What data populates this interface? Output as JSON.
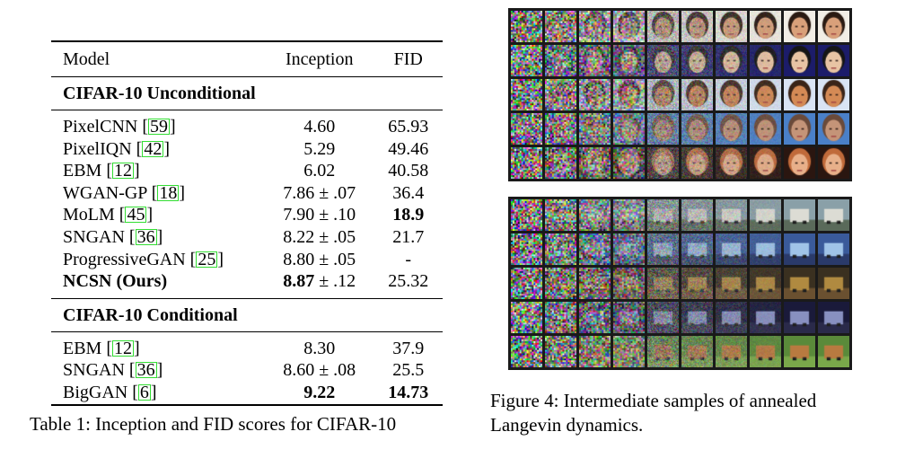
{
  "table": {
    "headers": {
      "model": "Model",
      "inception": "Inception",
      "fid": "FID"
    },
    "sections": [
      {
        "title": "CIFAR-10 Unconditional",
        "rows": [
          {
            "model": "PixelCNN",
            "ref": "59",
            "inception": "4.60",
            "fid": "65.93",
            "inception_bold": false,
            "fid_bold": false,
            "model_bold": false
          },
          {
            "model": "PixelIQN",
            "ref": "42",
            "inception": "5.29",
            "fid": "49.46",
            "inception_bold": false,
            "fid_bold": false,
            "model_bold": false
          },
          {
            "model": "EBM",
            "ref": "12",
            "inception": "6.02",
            "fid": "40.58",
            "inception_bold": false,
            "fid_bold": false,
            "model_bold": false
          },
          {
            "model": "WGAN-GP",
            "ref": "18",
            "inception": "7.86 ± .07",
            "fid": "36.4",
            "inception_bold": false,
            "fid_bold": false,
            "model_bold": false
          },
          {
            "model": "MoLM",
            "ref": "45",
            "inception": "7.90 ± .10",
            "fid": "18.9",
            "inception_bold": false,
            "fid_bold": true,
            "model_bold": false
          },
          {
            "model": "SNGAN",
            "ref": "36",
            "inception": "8.22 ± .05",
            "fid": "21.7",
            "inception_bold": false,
            "fid_bold": false,
            "model_bold": false
          },
          {
            "model": "ProgressiveGAN",
            "ref": "25",
            "inception": "8.80 ± .05",
            "fid": "-",
            "inception_bold": false,
            "fid_bold": false,
            "model_bold": false
          },
          {
            "model": "NCSN (Ours)",
            "ref": "",
            "inception": "8.87",
            "inception_rest": " ± .12",
            "fid": "25.32",
            "inception_bold": true,
            "fid_bold": false,
            "model_bold": true
          }
        ]
      },
      {
        "title": "CIFAR-10 Conditional",
        "rows": [
          {
            "model": "EBM",
            "ref": "12",
            "inception": "8.30",
            "fid": "37.9",
            "inception_bold": false,
            "fid_bold": false,
            "model_bold": false
          },
          {
            "model": "SNGAN",
            "ref": "36",
            "inception": "8.60 ± .08",
            "fid": "25.5",
            "inception_bold": false,
            "fid_bold": false,
            "model_bold": false
          },
          {
            "model": "BigGAN",
            "ref": "6",
            "inception": "9.22",
            "fid": "14.73",
            "inception_bold": true,
            "fid_bold": true,
            "model_bold": false
          }
        ]
      }
    ],
    "caption": "Table 1: Inception and FID scores for CIFAR-10"
  },
  "figure": {
    "caption_line1": "Figure 4: Intermediate samples of annealed",
    "caption_line2": "Langevin dynamics.",
    "faces_rows": [
      {
        "bg": "#f2eee6",
        "skin": "#d9a07a",
        "hair": "#2a1a12"
      },
      {
        "bg": "#1c1c6a",
        "skin": "#e8c4a4",
        "hair": "#151515"
      },
      {
        "bg": "#d9e4f4",
        "skin": "#d48a55",
        "hair": "#3a2418"
      },
      {
        "bg": "#4a80c8",
        "skin": "#c49478",
        "hair": "#6a4a3a"
      },
      {
        "bg": "#2a1610",
        "skin": "#e8b08a",
        "hair": "#c06a3a"
      }
    ],
    "cifar_rows": [
      {
        "bg": "#8aa0a8",
        "obj": "#dcdcd4",
        "ground": "#5a6a5a"
      },
      {
        "bg": "#3a5a9a",
        "obj": "#a0c4e8",
        "ground": "#2a3a6a"
      },
      {
        "bg": "#3a3020",
        "obj": "#b08a40",
        "ground": "#6a5030"
      },
      {
        "bg": "#1a1a3a",
        "obj": "#8890c0",
        "ground": "#2a2a4a"
      },
      {
        "bg": "#5a8a3a",
        "obj": "#b87a40",
        "ground": "#7aa84a"
      }
    ]
  }
}
